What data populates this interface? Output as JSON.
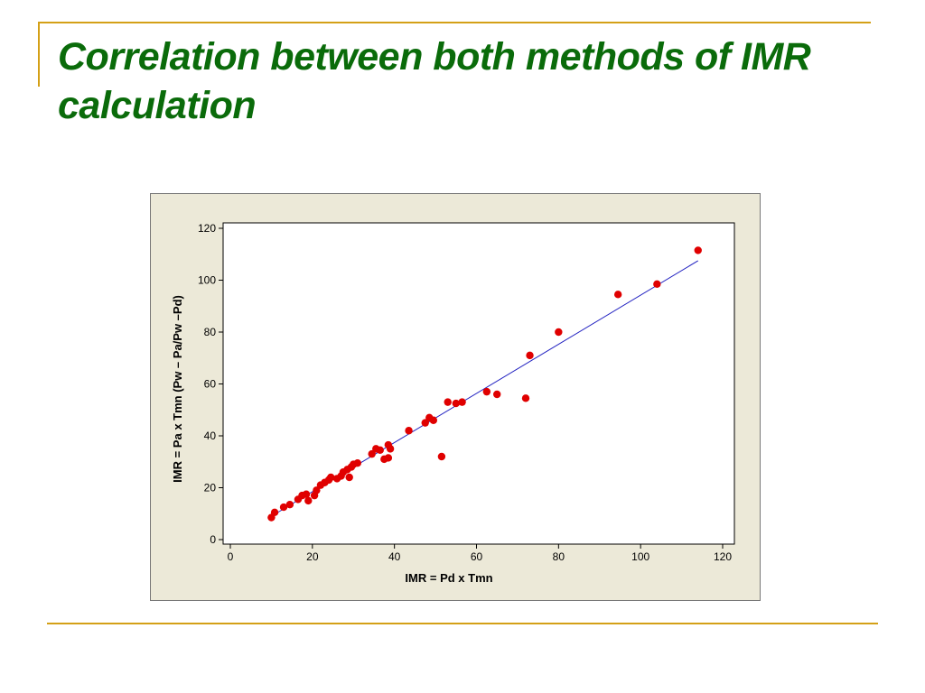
{
  "slide": {
    "title": "Correlation between both methods of IMR calculation",
    "accent_color": "#d4a017",
    "title_color": "#0a6b0a"
  },
  "chart_data": {
    "type": "scatter",
    "title": "",
    "xlabel": "IMR = Pd x Tmn",
    "ylabel": "IMR = Pa x Tmn (Pw – Pa/Pw –Pd)",
    "xlim": [
      0,
      120
    ],
    "ylim": [
      0,
      120
    ],
    "xticks": [
      0,
      20,
      40,
      60,
      80,
      100,
      120
    ],
    "yticks": [
      0,
      20,
      40,
      60,
      80,
      100,
      120
    ],
    "grid": false,
    "point_color": "#e00000",
    "line_color": "#2020c0",
    "series": [
      {
        "points": [
          [
            10,
            8.5
          ],
          [
            10.8,
            10.5
          ],
          [
            13,
            12.5
          ],
          [
            14.5,
            13.5
          ],
          [
            16.5,
            15.5
          ],
          [
            17.5,
            17
          ],
          [
            18.5,
            17.5
          ],
          [
            19,
            15
          ],
          [
            20.5,
            17
          ],
          [
            21,
            19
          ],
          [
            22,
            21
          ],
          [
            23,
            22
          ],
          [
            24,
            23
          ],
          [
            24.5,
            24
          ],
          [
            26,
            23.5
          ],
          [
            27,
            24.5
          ],
          [
            27.5,
            26
          ],
          [
            28.5,
            27
          ],
          [
            29,
            24
          ],
          [
            29.5,
            28
          ],
          [
            30,
            29
          ],
          [
            31,
            29.5
          ],
          [
            34.5,
            33
          ],
          [
            35.5,
            35
          ],
          [
            36.5,
            34.5
          ],
          [
            37.5,
            31
          ],
          [
            38.5,
            36.5
          ],
          [
            38.5,
            31.5
          ],
          [
            39,
            35
          ],
          [
            43.5,
            42
          ],
          [
            47.5,
            45
          ],
          [
            48.5,
            47
          ],
          [
            49.5,
            46
          ],
          [
            51.5,
            32
          ],
          [
            53,
            53
          ],
          [
            55,
            52.5
          ],
          [
            56.5,
            53
          ],
          [
            62.5,
            57
          ],
          [
            65,
            56
          ],
          [
            72,
            54.5
          ],
          [
            73,
            71
          ],
          [
            80,
            80
          ],
          [
            94.5,
            94.5
          ],
          [
            104,
            98.5
          ],
          [
            114,
            111.5
          ]
        ]
      }
    ],
    "fit_line": {
      "x": [
        10,
        114
      ],
      "y": [
        9,
        107.5
      ]
    }
  }
}
